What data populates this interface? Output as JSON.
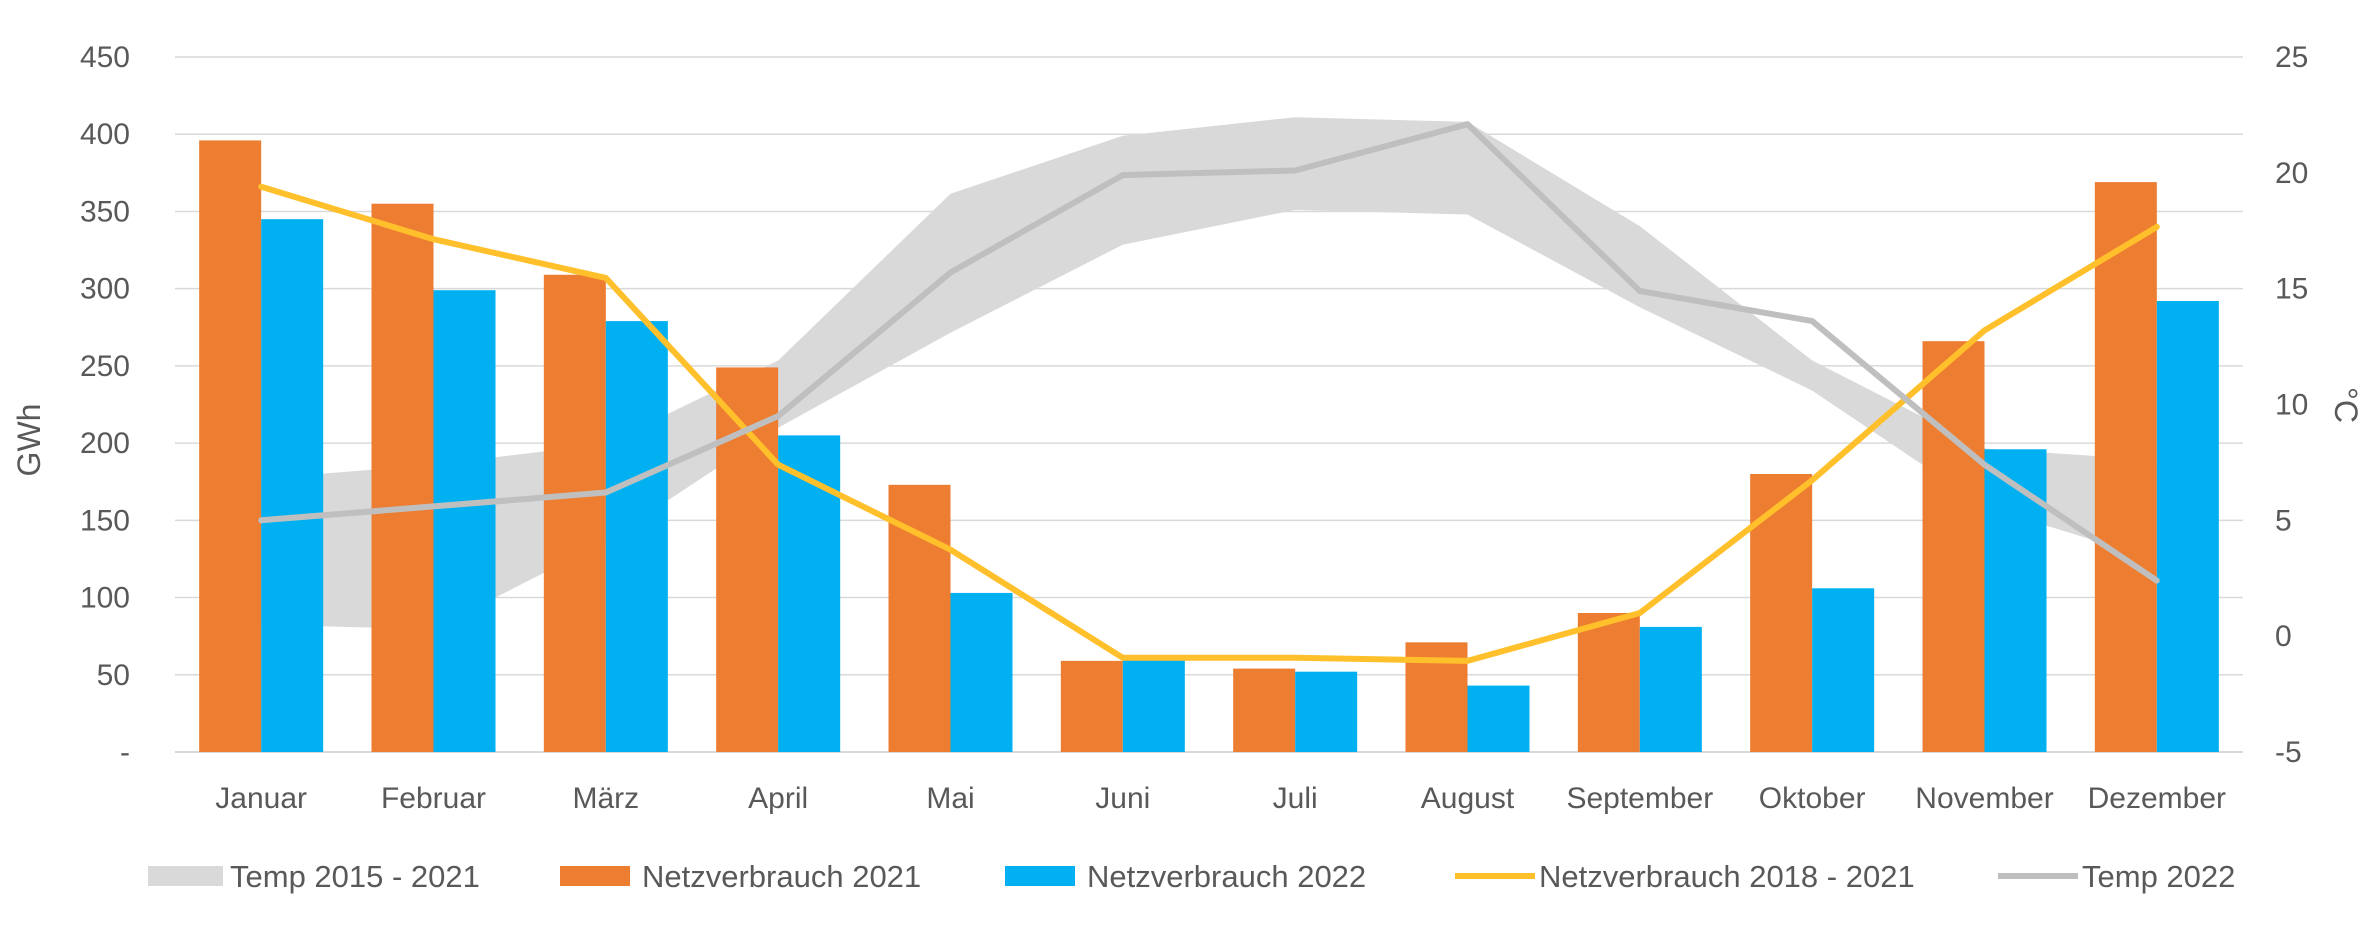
{
  "chart_data": {
    "type": "bar",
    "categories": [
      "Januar",
      "Februar",
      "März",
      "April",
      "Mai",
      "Juni",
      "Juli",
      "August",
      "September",
      "Oktober",
      "November",
      "Dezember"
    ],
    "bar_series": [
      {
        "name": "Netzverbrauch 2021",
        "color": "#ED7D31",
        "values": [
          396,
          355,
          309,
          249,
          173,
          59,
          54,
          71,
          90,
          180,
          266,
          369
        ]
      },
      {
        "name": "Netzverbrauch 2022",
        "color": "#00B0F0",
        "values": [
          345,
          299,
          279,
          205,
          103,
          60,
          52,
          43,
          81,
          106,
          196,
          292
        ]
      }
    ],
    "line_series": [
      {
        "name": "Netzverbrauch 2018 - 2021",
        "axis": "left",
        "color": "#FFC02B",
        "values": [
          366,
          332,
          307,
          186,
          131,
          61,
          61,
          59,
          90,
          176,
          273,
          340
        ]
      },
      {
        "name": "Temp 2022",
        "axis": "right",
        "color": "#BFBFBF",
        "values": [
          5.0,
          5.6,
          6.2,
          9.5,
          15.7,
          19.9,
          20.1,
          22.1,
          14.9,
          13.6,
          7.4,
          2.4
        ]
      }
    ],
    "band_series": [
      {
        "name": "Temp 2015 - 2021",
        "axis": "right",
        "color": "#D9D9D9",
        "low": [
          0.5,
          0.3,
          4.1,
          9.0,
          13.1,
          16.9,
          18.4,
          18.2,
          14.2,
          10.6,
          5.6,
          3.3
        ],
        "high": [
          6.8,
          7.4,
          8.3,
          11.9,
          19.1,
          21.6,
          22.4,
          22.2,
          17.7,
          11.9,
          8.1,
          7.6
        ]
      }
    ],
    "ylabel": "GWh",
    "y2label": "°C",
    "ylim": [
      0,
      450
    ],
    "y2lim": [
      -5,
      25
    ],
    "y_ticks": [
      "-",
      "50",
      "100",
      "150",
      "200",
      "250",
      "300",
      "350",
      "400",
      "450"
    ],
    "y2_ticks": [
      "-5",
      "0",
      "5",
      "10",
      "15",
      "20",
      "25"
    ],
    "legend": {
      "position": "bottom",
      "items": [
        {
          "label": "Temp 2015 - 2021",
          "kind": "band"
        },
        {
          "label": "Netzverbrauch 2021",
          "kind": "bar"
        },
        {
          "label": "Netzverbrauch 2022",
          "kind": "bar"
        },
        {
          "label": "Netzverbrauch 2018 - 2021",
          "kind": "line"
        },
        {
          "label": "Temp 2022",
          "kind": "line"
        }
      ]
    },
    "grid": true
  },
  "colors": {
    "grid": "#D9D9D9",
    "axis_text": "#595959"
  }
}
